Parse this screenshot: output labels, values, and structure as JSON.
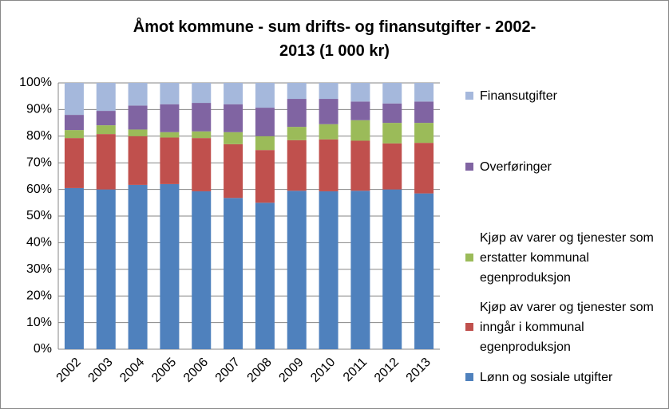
{
  "chart_data": {
    "type": "bar",
    "stacked": true,
    "title": "Åmot kommune  - sum drifts- og finansutgifter - 2002-2013 (1 000 kr)",
    "categories": [
      "2002",
      "2003",
      "2004",
      "2005",
      "2006",
      "2007",
      "2008",
      "2009",
      "2010",
      "2011",
      "2012",
      "2013"
    ],
    "series": [
      {
        "name": "Lønn og sosiale utgifter",
        "color": "#4f81bd",
        "values": [
          60.5,
          60,
          61.7,
          62,
          59.3,
          56.8,
          55,
          59.5,
          59.3,
          59.5,
          60,
          58.5
        ]
      },
      {
        "name": "Kjøp av varer og tjenester som inngår i kommunal egenproduksjon",
        "color": "#c0504d",
        "values": [
          18.8,
          20.8,
          18.3,
          17.5,
          20,
          20.2,
          19.8,
          19,
          19.5,
          18.8,
          17.3,
          19
        ]
      },
      {
        "name": "Kjøp av varer og tjenester som erstatter kommunal egenproduksjon",
        "color": "#9bbb59",
        "values": [
          3,
          3.3,
          2.5,
          2,
          2.5,
          4.5,
          5.2,
          5,
          5.7,
          7.7,
          7.7,
          7.5
        ]
      },
      {
        "name": "Overføringer",
        "color": "#8064a2",
        "values": [
          5.7,
          5.4,
          9,
          10.5,
          10.7,
          10.5,
          10.7,
          10.5,
          9.5,
          7,
          7.3,
          8
        ]
      },
      {
        "name": "Finansutgifter",
        "color": "#a5b8dc",
        "values": [
          12,
          10.5,
          8.5,
          8,
          7.5,
          8,
          9.3,
          6,
          6,
          7,
          7.7,
          7
        ]
      }
    ],
    "ylim": [
      0,
      100
    ],
    "yticks": [
      {
        "value": 0,
        "label": "0%"
      },
      {
        "value": 10,
        "label": "10%"
      },
      {
        "value": 20,
        "label": "20%"
      },
      {
        "value": 30,
        "label": "30%"
      },
      {
        "value": 40,
        "label": "40%"
      },
      {
        "value": 50,
        "label": "50%"
      },
      {
        "value": 60,
        "label": "60%"
      },
      {
        "value": 70,
        "label": "70%"
      },
      {
        "value": 80,
        "label": "80%"
      },
      {
        "value": 90,
        "label": "90%"
      },
      {
        "value": 100,
        "label": "100%"
      }
    ],
    "grid": true,
    "legend": "right"
  }
}
